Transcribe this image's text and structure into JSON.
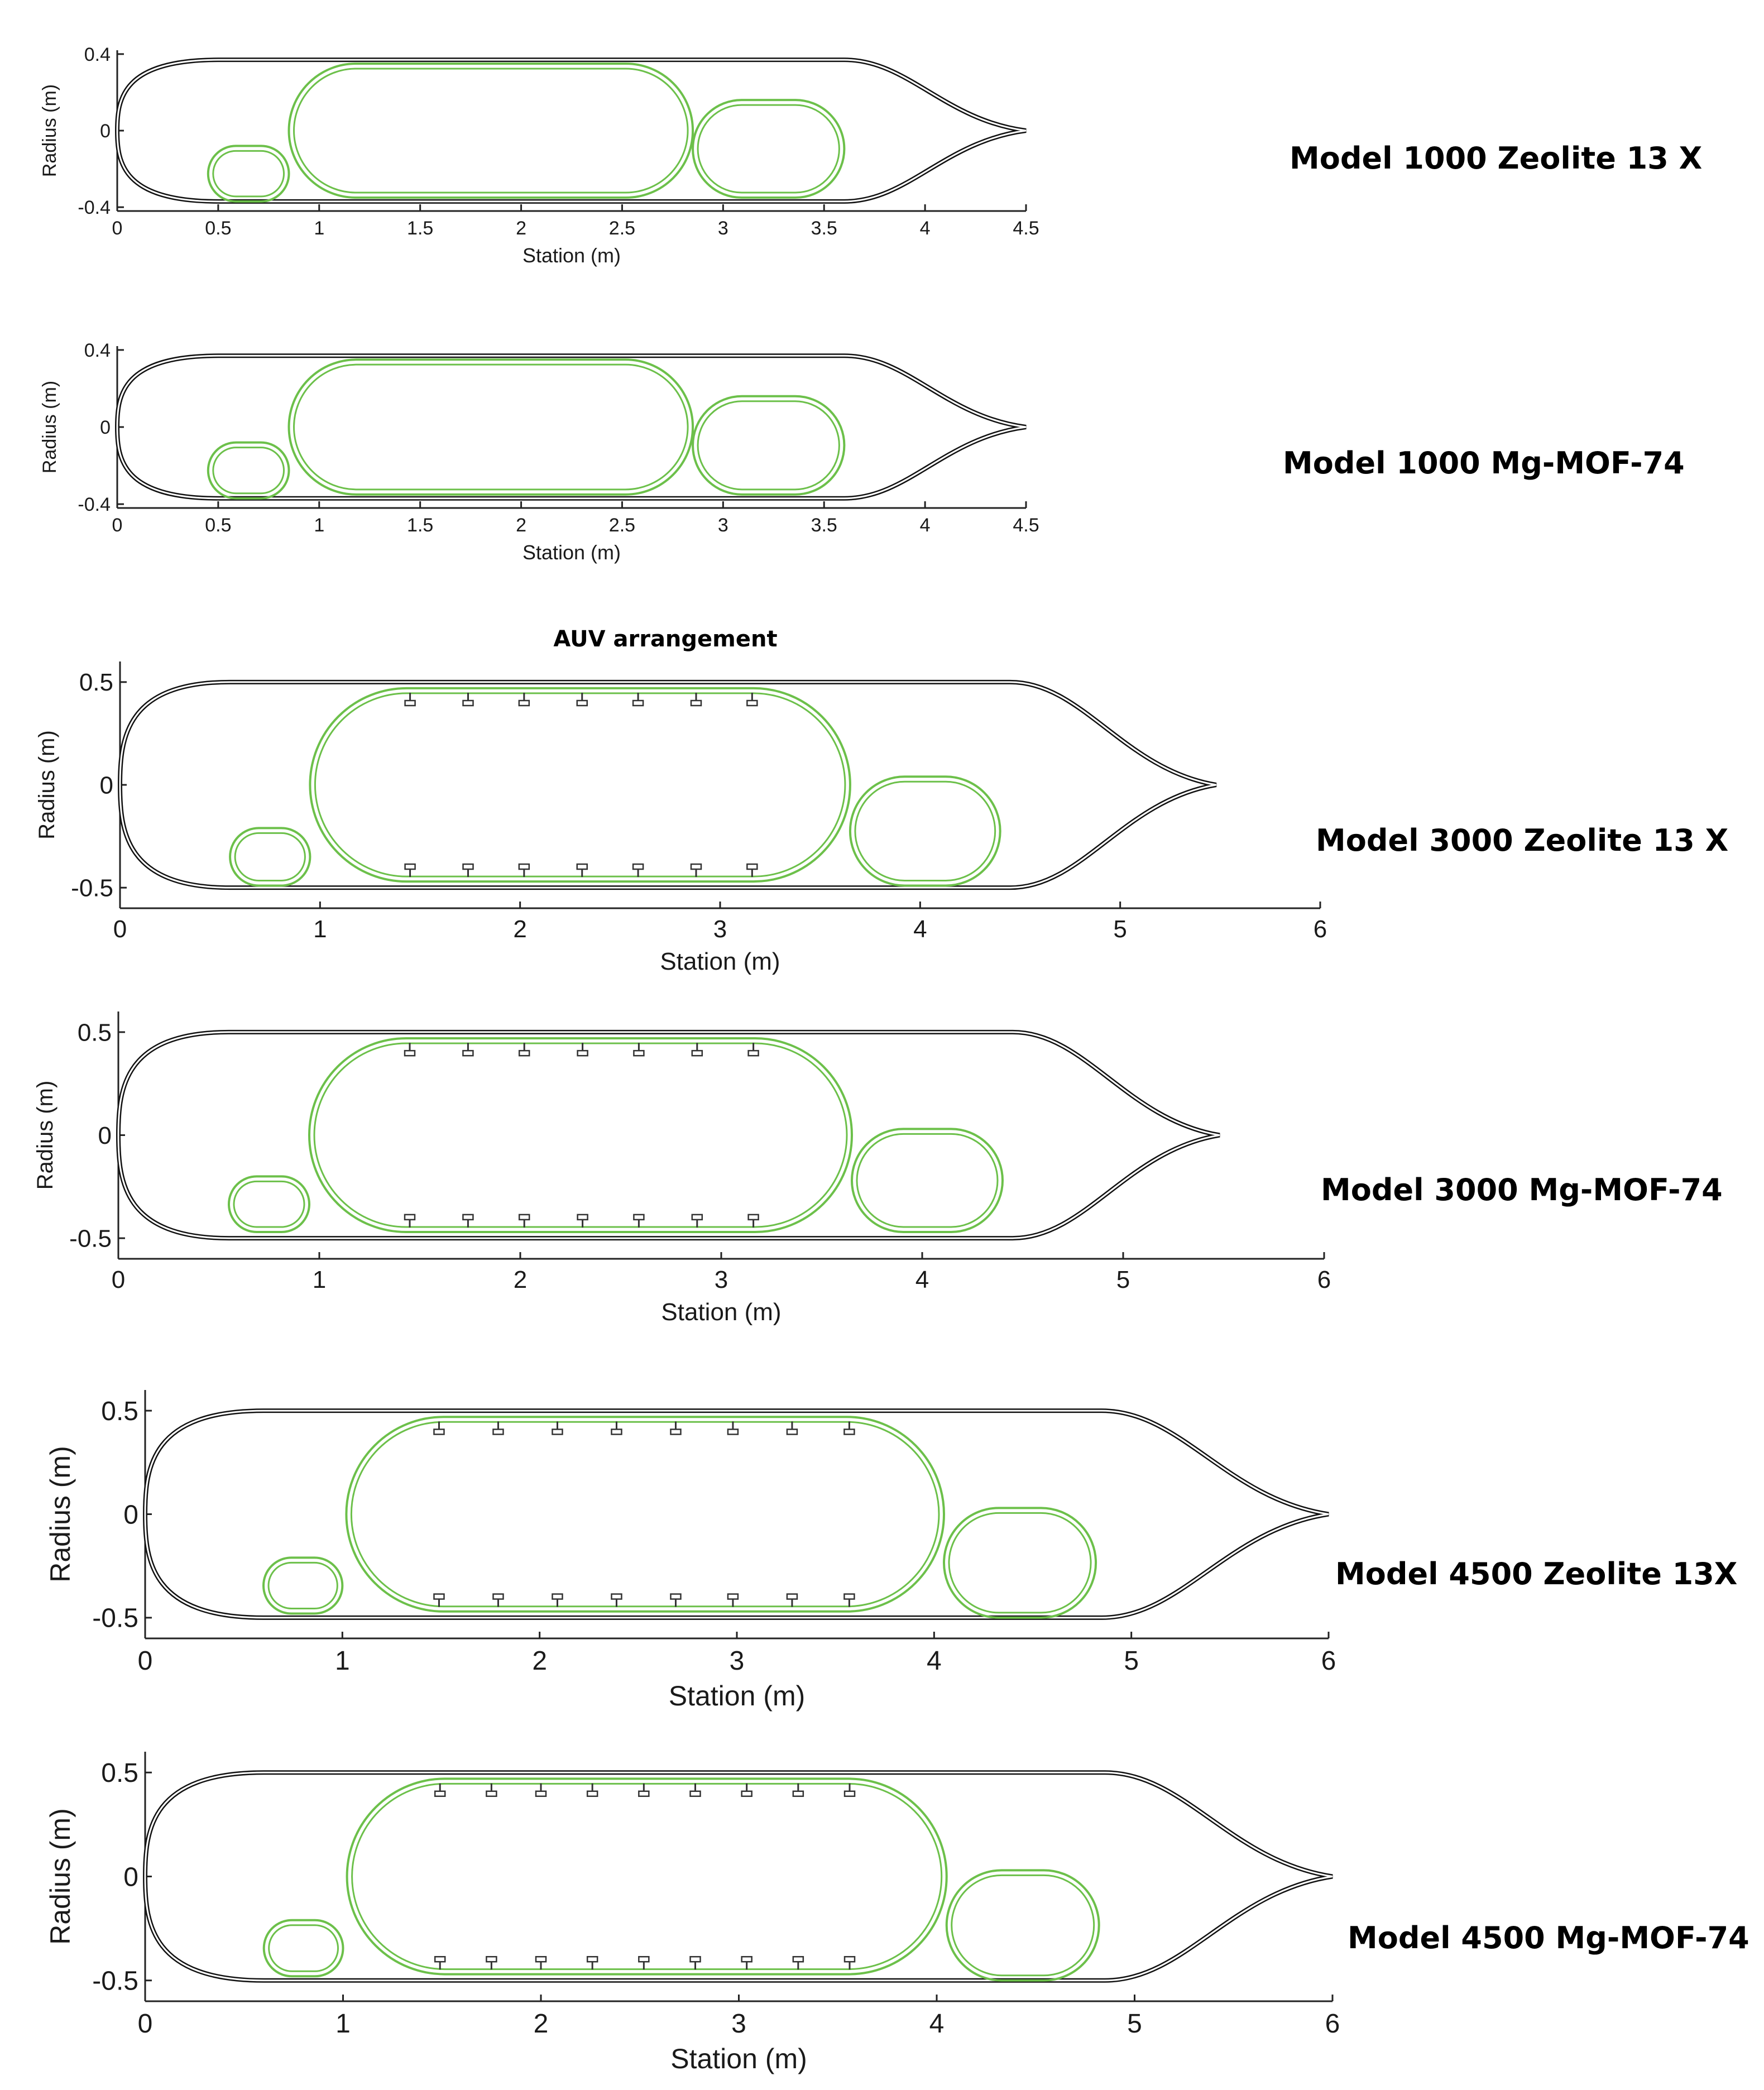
{
  "figure": {
    "heading": "AUV arrangement",
    "colors": {
      "hull": "#111111",
      "tank": "#6cc04a",
      "axis": "#222222",
      "stringer": "#333333"
    },
    "panels": [
      {
        "id": "p1",
        "label": "Model 1000 Zeolite 13 X",
        "xlabel": "Station (m)",
        "ylabel": "Radius (m)",
        "xlim": [
          0,
          4.5
        ],
        "ylim": [
          -0.42,
          0.42
        ],
        "xticks": [
          0,
          0.5,
          1,
          1.5,
          2,
          2.5,
          3,
          3.5,
          4,
          4.5
        ],
        "xtick_labels": [
          "0",
          "0.5",
          "1",
          "1.5",
          "2",
          "2.5",
          "3",
          "3.5",
          "4",
          "4.5"
        ],
        "yticks": [
          0.4,
          0,
          -0.4
        ],
        "ytick_labels": [
          "0.4",
          "0",
          "-0.4"
        ],
        "hull": {
          "length": 4.5,
          "radius": 0.37,
          "nose": 0.5,
          "tail_start": 3.6
        },
        "tanks": [
          {
            "x0": 0.45,
            "x1": 0.85,
            "y0": -0.37,
            "y1": -0.08
          },
          {
            "x0": 0.85,
            "x1": 2.85,
            "y0": -0.35,
            "y1": 0.35
          },
          {
            "x0": 2.85,
            "x1": 3.6,
            "y0": -0.35,
            "y1": 0.16
          }
        ],
        "stringers": null
      },
      {
        "id": "p2",
        "label": "Model 1000 Mg-MOF-74",
        "xlabel": "Station (m)",
        "ylabel": "Radius (m)",
        "xlim": [
          0,
          4.5
        ],
        "ylim": [
          -0.42,
          0.42
        ],
        "xticks": [
          0,
          0.5,
          1,
          1.5,
          2,
          2.5,
          3,
          3.5,
          4,
          4.5
        ],
        "xtick_labels": [
          "0",
          "0.5",
          "1",
          "1.5",
          "2",
          "2.5",
          "3",
          "3.5",
          "4",
          "4.5"
        ],
        "yticks": [
          0.4,
          0,
          -0.4
        ],
        "ytick_labels": [
          "0.4",
          "0",
          "-0.4"
        ],
        "hull": {
          "length": 4.5,
          "radius": 0.37,
          "nose": 0.5,
          "tail_start": 3.6
        },
        "tanks": [
          {
            "x0": 0.45,
            "x1": 0.85,
            "y0": -0.37,
            "y1": -0.08
          },
          {
            "x0": 0.85,
            "x1": 2.85,
            "y0": -0.35,
            "y1": 0.35
          },
          {
            "x0": 2.85,
            "x1": 3.6,
            "y0": -0.35,
            "y1": 0.16
          }
        ],
        "stringers": null
      },
      {
        "id": "p3",
        "label": "Model 3000 Zeolite 13 X",
        "xlabel": "Station (m)",
        "ylabel": "Radius (m)",
        "xlim": [
          0,
          6
        ],
        "ylim": [
          -0.6,
          0.6
        ],
        "xticks": [
          0,
          1,
          2,
          3,
          4,
          5,
          6
        ],
        "xtick_labels": [
          "0",
          "1",
          "2",
          "3",
          "4",
          "5",
          "6"
        ],
        "yticks": [
          0.5,
          0,
          -0.5
        ],
        "ytick_labels": [
          "0.5",
          "0",
          "-0.5"
        ],
        "hull": {
          "length": 5.48,
          "radius": 0.5,
          "nose": 0.55,
          "tail_start": 4.45
        },
        "tanks": [
          {
            "x0": 0.55,
            "x1": 0.95,
            "y0": -0.49,
            "y1": -0.21
          },
          {
            "x0": 0.95,
            "x1": 3.65,
            "y0": -0.47,
            "y1": 0.47
          },
          {
            "x0": 3.65,
            "x1": 4.4,
            "y0": -0.49,
            "y1": 0.04
          }
        ],
        "stringers": {
          "x": [
            1.45,
            1.74,
            2.02,
            2.31,
            2.59,
            2.88,
            3.16
          ],
          "y_top": 0.41,
          "y_bottom": -0.41
        }
      },
      {
        "id": "p4",
        "label": "Model 3000 Mg-MOF-74",
        "xlabel": "Station (m)",
        "ylabel": "Radius (m)",
        "xlim": [
          0,
          6
        ],
        "ylim": [
          -0.6,
          0.6
        ],
        "xticks": [
          0,
          1,
          2,
          3,
          4,
          5,
          6
        ],
        "xtick_labels": [
          "0",
          "1",
          "2",
          "3",
          "4",
          "5",
          "6"
        ],
        "yticks": [
          0.5,
          0,
          -0.5
        ],
        "ytick_labels": [
          "0.5",
          "0",
          "-0.5"
        ],
        "hull": {
          "length": 5.48,
          "radius": 0.5,
          "nose": 0.55,
          "tail_start": 4.45
        },
        "tanks": [
          {
            "x0": 0.55,
            "x1": 0.95,
            "y0": -0.47,
            "y1": -0.2
          },
          {
            "x0": 0.95,
            "x1": 3.65,
            "y0": -0.47,
            "y1": 0.47
          },
          {
            "x0": 3.65,
            "x1": 4.4,
            "y0": -0.47,
            "y1": 0.03
          }
        ],
        "stringers": {
          "x": [
            1.45,
            1.74,
            2.02,
            2.31,
            2.59,
            2.88,
            3.16
          ],
          "y_top": 0.41,
          "y_bottom": -0.41
        }
      },
      {
        "id": "p5",
        "label": "Model 4500 Zeolite 13X",
        "xlabel": "Station (m)",
        "ylabel": "Radius (m)",
        "xlim": [
          0,
          6
        ],
        "ylim": [
          -0.6,
          0.6
        ],
        "xticks": [
          0,
          1,
          2,
          3,
          4,
          5,
          6
        ],
        "xtick_labels": [
          "0",
          "1",
          "2",
          "3",
          "4",
          "5",
          "6"
        ],
        "yticks": [
          0.5,
          0,
          -0.5
        ],
        "ytick_labels": [
          "0.5",
          "0",
          "-0.5"
        ],
        "hull": {
          "length": 6.0,
          "radius": 0.5,
          "nose": 0.6,
          "tail_start": 4.85
        },
        "tanks": [
          {
            "x0": 0.6,
            "x1": 1.0,
            "y0": -0.48,
            "y1": -0.21
          },
          {
            "x0": 1.02,
            "x1": 4.05,
            "y0": -0.47,
            "y1": 0.47
          },
          {
            "x0": 4.05,
            "x1": 4.82,
            "y0": -0.5,
            "y1": 0.03
          }
        ],
        "stringers": {
          "x": [
            1.49,
            1.79,
            2.09,
            2.39,
            2.69,
            2.98,
            3.28,
            3.57
          ],
          "y_top": 0.41,
          "y_bottom": -0.41
        }
      },
      {
        "id": "p6",
        "label": "Model 4500 Mg-MOF-74",
        "xlabel": "Station (m)",
        "ylabel": "Radius (m)",
        "xlim": [
          0,
          6
        ],
        "ylim": [
          -0.6,
          0.6
        ],
        "xticks": [
          0,
          1,
          2,
          3,
          4,
          5,
          6
        ],
        "xtick_labels": [
          "0",
          "1",
          "2",
          "3",
          "4",
          "5",
          "6"
        ],
        "yticks": [
          0.5,
          0,
          -0.5
        ],
        "ytick_labels": [
          "0.5",
          "0",
          "-0.5"
        ],
        "hull": {
          "length": 6.0,
          "radius": 0.5,
          "nose": 0.6,
          "tail_start": 4.85
        },
        "tanks": [
          {
            "x0": 0.6,
            "x1": 1.0,
            "y0": -0.48,
            "y1": -0.21
          },
          {
            "x0": 1.02,
            "x1": 4.05,
            "y0": -0.47,
            "y1": 0.47
          },
          {
            "x0": 4.05,
            "x1": 4.82,
            "y0": -0.5,
            "y1": 0.03
          }
        ],
        "stringers": {
          "x": [
            1.49,
            1.75,
            2.0,
            2.26,
            2.52,
            2.78,
            3.04,
            3.3,
            3.56
          ],
          "y_top": 0.41,
          "y_bottom": -0.41
        }
      }
    ]
  }
}
